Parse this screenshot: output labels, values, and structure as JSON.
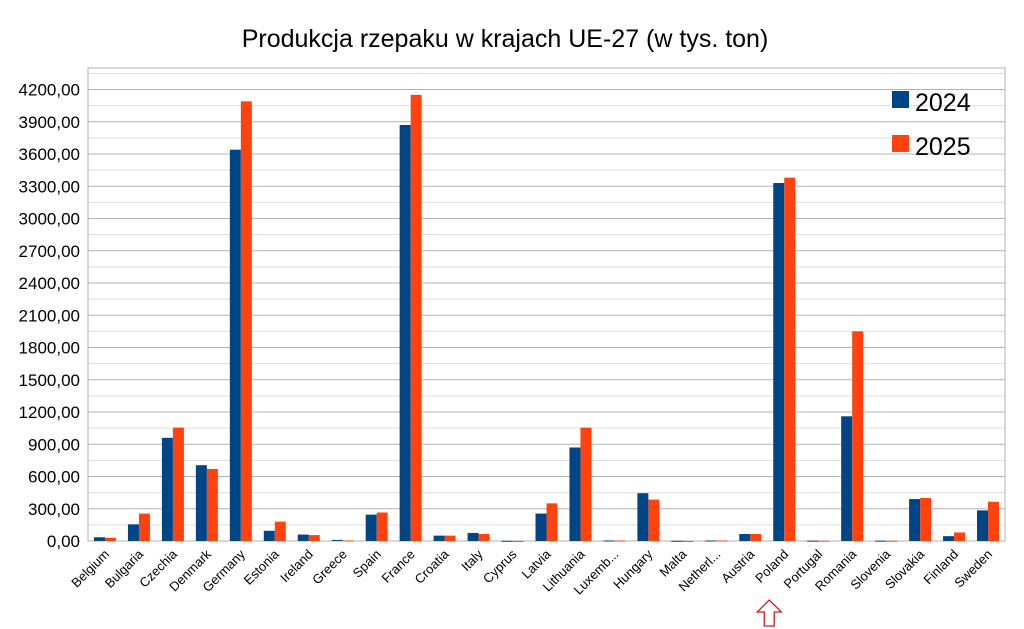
{
  "chart_data": {
    "type": "bar",
    "title": "Produkcja rzepaku w krajach UE-27 (w tys. ton)",
    "xlabel": "",
    "ylabel": "",
    "ylim": [
      0,
      4400
    ],
    "yticks": [
      0,
      300,
      600,
      900,
      1200,
      1500,
      1800,
      2100,
      2400,
      2700,
      3000,
      3300,
      3600,
      3900,
      4200
    ],
    "ytick_labels": [
      "0,00",
      "300,00",
      "600,00",
      "900,00",
      "1200,00",
      "1500,00",
      "1800,00",
      "2100,00",
      "2400,00",
      "2700,00",
      "3000,00",
      "3300,00",
      "3600,00",
      "3900,00",
      "4200,00"
    ],
    "grid": true,
    "legend": "top-right",
    "categories": [
      "Belgium",
      "Bulgaria",
      "Czechia",
      "Denmark",
      "Germany",
      "Estonia",
      "Ireland",
      "Greece",
      "Spain",
      "France",
      "Croatia",
      "Italy",
      "Cyprus",
      "Latvia",
      "Lithuania",
      "Luxemb...",
      "Hungary",
      "Malta",
      "Netherl...",
      "Austria",
      "Poland",
      "Portugal",
      "Romania",
      "Slovenia",
      "Slovakia",
      "Finland",
      "Sweden"
    ],
    "series": [
      {
        "name": "2024",
        "color": "#004586",
        "values": [
          35,
          155,
          960,
          705,
          3640,
          95,
          60,
          10,
          245,
          3870,
          50,
          75,
          2,
          255,
          870,
          5,
          445,
          2,
          5,
          65,
          3330,
          3,
          1160,
          3,
          390,
          45,
          285
        ]
      },
      {
        "name": "2025",
        "color": "#ff420e",
        "values": [
          30,
          255,
          1055,
          670,
          4090,
          180,
          55,
          5,
          265,
          4150,
          50,
          65,
          1,
          350,
          1055,
          5,
          385,
          1,
          5,
          65,
          3380,
          3,
          1950,
          3,
          400,
          80,
          365
        ]
      }
    ],
    "highlight_category": "Poland",
    "highlight_marker": "up-arrow-outline",
    "highlight_color": "#c9211e"
  }
}
